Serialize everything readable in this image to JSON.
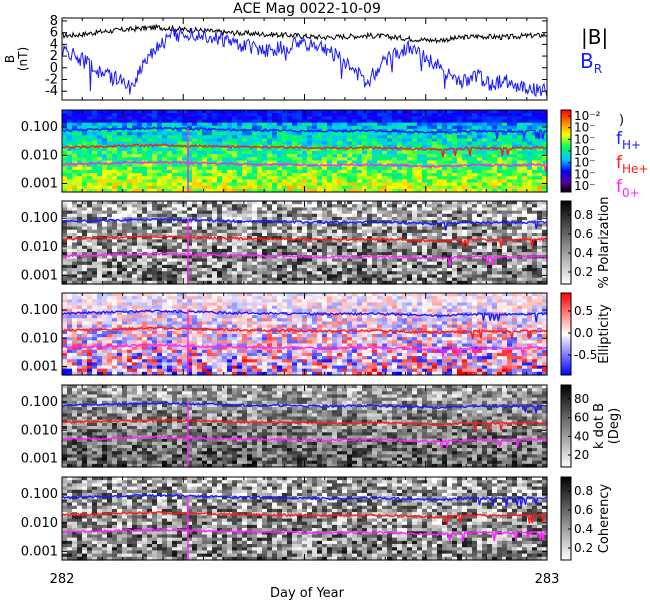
{
  "title": "ACE Mag 0022-10-09",
  "xlabel": "Day of Year",
  "x_ticks": [
    "282",
    "283"
  ],
  "chart_data": [
    {
      "type": "line",
      "panel": "field",
      "ylabel": "B\n(nT)",
      "y_ticks": [
        "8",
        "6",
        "4",
        "2",
        "0",
        "-2",
        "-4"
      ],
      "ylim": [
        -5.5,
        8.5
      ],
      "legend": [
        {
          "label": "|B|",
          "color": "#000000"
        },
        {
          "label": "B",
          "sub": "R",
          "color": "#1a1aff"
        }
      ],
      "series": [
        {
          "name": "|B|",
          "color": "#000000",
          "values": [
            5.5,
            5.6,
            5.9,
            6.2,
            6.4,
            6.6,
            6.8,
            6.9,
            6.7,
            6.5,
            6.4,
            6.2,
            6.0,
            5.9,
            5.8,
            5.7,
            5.6,
            5.5,
            5.3,
            5.2,
            5.3,
            5.4,
            5.5,
            5.4,
            5.2,
            5.0,
            4.8,
            4.7,
            4.9,
            5.2,
            5.4,
            5.3,
            5.2,
            5.4,
            5.5,
            5.6
          ]
        },
        {
          "name": "B_R",
          "color": "#1a1aff",
          "values": [
            3.0,
            2.0,
            0.5,
            -1.0,
            -2.0,
            -3.5,
            1.5,
            4.0,
            5.5,
            6.0,
            5.8,
            5.2,
            4.5,
            3.8,
            3.5,
            2.8,
            3.5,
            4.2,
            4.0,
            3.2,
            2.0,
            -0.5,
            -2.5,
            0.5,
            2.5,
            3.5,
            2.0,
            0.5,
            -1.5,
            -2.5,
            -1.5,
            -3.0,
            -2.0,
            -3.5,
            -3.5,
            -4.0
          ]
        }
      ]
    },
    {
      "type": "heatmap",
      "panel": "power",
      "y_ticks": [
        "0.100",
        "0.010",
        "0.001"
      ],
      "colorbar_ticks": [
        "10⁻²",
        "10⁻",
        "10⁻",
        "10⁻",
        "10⁻",
        "10⁻",
        "10⁻"
      ],
      "colorscale": "rainbow",
      "legend": [
        {
          "label": "f",
          "sub": "H+",
          "color": "#1a1aff"
        },
        {
          "label": "f",
          "sub": "He+",
          "color": "#ff1a1a"
        },
        {
          "label": "f",
          "sub": "0+",
          "color": "#ff22ff"
        }
      ],
      "corner_mark": ")"
    },
    {
      "type": "heatmap",
      "panel": "polarization",
      "y_ticks": [
        "0.100",
        "0.010",
        "0.001"
      ],
      "colorbar_label": "% Polarization",
      "colorbar_ticks": [
        "0.8",
        "0.6",
        "0.4",
        "0.2"
      ],
      "colorscale": "gray"
    },
    {
      "type": "heatmap",
      "panel": "ellipticity",
      "y_ticks": [
        "0.100",
        "0.010",
        "0.001"
      ],
      "colorbar_label": "Ellipticity",
      "colorbar_ticks": [
        "0.5",
        "0.0",
        "-0.5"
      ],
      "colorscale": "bluewhitered"
    },
    {
      "type": "heatmap",
      "panel": "kdotb",
      "y_ticks": [
        "0.100",
        "0.010",
        "0.001"
      ],
      "colorbar_label": "k dot B\n(Deg)",
      "colorbar_ticks": [
        "80",
        "60",
        "40",
        "20"
      ],
      "colorscale": "gray"
    },
    {
      "type": "heatmap",
      "panel": "coherency",
      "y_ticks": [
        "0.100",
        "0.010",
        "0.001"
      ],
      "colorbar_label": "Coherency",
      "colorbar_ticks": [
        "0.8",
        "0.6",
        "0.4",
        "0.2"
      ],
      "colorscale": "gray"
    }
  ],
  "gyro_lines": [
    {
      "name": "f_H+",
      "color": "#1a1aff",
      "values": [
        0.075,
        0.078,
        0.08,
        0.082,
        0.085,
        0.088,
        0.09,
        0.092,
        0.089,
        0.086,
        0.084,
        0.082,
        0.08,
        0.078,
        0.077,
        0.076,
        0.075,
        0.074,
        0.072,
        0.071,
        0.072,
        0.073,
        0.074,
        0.073,
        0.071,
        0.068,
        0.066,
        0.064,
        0.066,
        0.07,
        0.072,
        0.071,
        0.07,
        0.072,
        0.073,
        0.074
      ]
    },
    {
      "name": "f_He+",
      "color": "#ff1a1a",
      "values": [
        0.019,
        0.0195,
        0.02,
        0.0205,
        0.021,
        0.022,
        0.0225,
        0.023,
        0.0222,
        0.0215,
        0.021,
        0.0205,
        0.02,
        0.0195,
        0.0192,
        0.019,
        0.0188,
        0.0185,
        0.018,
        0.0178,
        0.018,
        0.0182,
        0.0185,
        0.0182,
        0.0178,
        0.017,
        0.0165,
        0.016,
        0.0165,
        0.0175,
        0.018,
        0.0178,
        0.0175,
        0.018,
        0.0182,
        0.0185
      ]
    },
    {
      "name": "f_0+",
      "color": "#ff22ff",
      "values": [
        0.0047,
        0.0049,
        0.005,
        0.0051,
        0.0053,
        0.0055,
        0.0056,
        0.0058,
        0.0056,
        0.0054,
        0.0052,
        0.0051,
        0.005,
        0.0049,
        0.0048,
        0.0047,
        0.0047,
        0.0046,
        0.0045,
        0.0044,
        0.0045,
        0.0046,
        0.0046,
        0.0046,
        0.0044,
        0.0043,
        0.0041,
        0.004,
        0.0041,
        0.0044,
        0.0045,
        0.0044,
        0.0044,
        0.0045,
        0.0046,
        0.0046
      ]
    }
  ]
}
